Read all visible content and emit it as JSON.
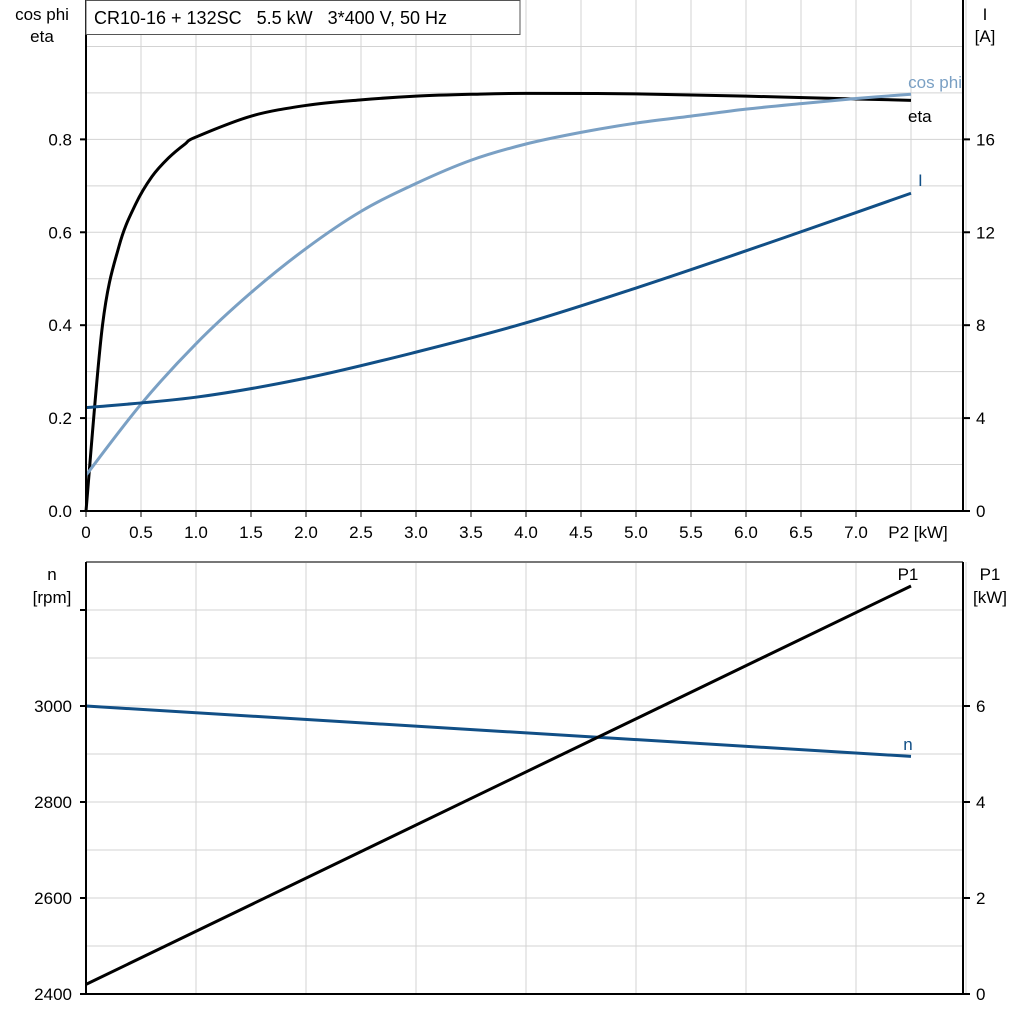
{
  "title": "CR10-16 + 132SC   5.5 kW   3*400 V, 50 Hz",
  "chart_data": [
    {
      "type": "line",
      "x_label": "P2 [kW]",
      "x_ticks": [
        "0",
        "0.5",
        "1.0",
        "1.5",
        "2.0",
        "2.5",
        "3.0",
        "3.5",
        "4.0",
        "4.5",
        "5.0",
        "5.5",
        "6.0",
        "6.5",
        "7.0"
      ],
      "xlim": [
        0,
        8
      ],
      "y_left_label": [
        "cos phi",
        "eta"
      ],
      "y_left_ticks": [
        "0.0",
        "0.2",
        "0.4",
        "0.6",
        "0.8"
      ],
      "ylim_left": [
        0,
        1.1
      ],
      "y_right_label": [
        "I",
        "[A]"
      ],
      "y_right_ticks": [
        "0",
        "4",
        "8",
        "12",
        "16"
      ],
      "ylim_right": [
        0,
        22
      ],
      "grid": true,
      "series": [
        {
          "name": "eta",
          "axis": "left",
          "color": "#000000",
          "x": [
            0,
            0.15,
            0.3,
            0.45,
            0.6,
            0.75,
            0.9,
            1.0,
            1.5,
            2.0,
            2.5,
            3.0,
            3.5,
            4.0,
            5.0,
            6.0,
            7.0,
            7.5
          ],
          "y": [
            0,
            0.4,
            0.57,
            0.66,
            0.72,
            0.76,
            0.79,
            0.805,
            0.85,
            0.873,
            0.885,
            0.893,
            0.897,
            0.899,
            0.898,
            0.893,
            0.887,
            0.884
          ]
        },
        {
          "name": "cos phi",
          "axis": "left",
          "color": "#7aa0c4",
          "x": [
            0,
            0.5,
            1.0,
            1.5,
            2.0,
            2.5,
            3.0,
            3.5,
            4.0,
            4.5,
            5.0,
            5.5,
            6.0,
            6.5,
            7.0,
            7.5
          ],
          "y": [
            0.077,
            0.23,
            0.36,
            0.47,
            0.565,
            0.645,
            0.705,
            0.755,
            0.79,
            0.815,
            0.835,
            0.85,
            0.865,
            0.877,
            0.888,
            0.897
          ]
        },
        {
          "name": "I",
          "axis": "right",
          "color": "#114f86",
          "x": [
            0,
            1.0,
            2.0,
            3.0,
            4.0,
            5.0,
            6.0,
            7.0,
            7.5
          ],
          "y": [
            4.45,
            4.9,
            5.72,
            6.84,
            8.1,
            9.6,
            11.2,
            12.85,
            13.68
          ]
        }
      ]
    },
    {
      "type": "line",
      "xlim": [
        0,
        8
      ],
      "y_left_label": [
        "n",
        "[rpm]"
      ],
      "y_left_ticks": [
        "2400",
        "2600",
        "2800",
        "3000"
      ],
      "ylim_left": [
        2400,
        3300
      ],
      "y_right_label": [
        "P1",
        "[kW]"
      ],
      "y_right_ticks": [
        "0",
        "2",
        "4",
        "6"
      ],
      "ylim_right": [
        0,
        9
      ],
      "grid": true,
      "series": [
        {
          "name": "n",
          "axis": "left",
          "color": "#114f86",
          "x": [
            0,
            7.5
          ],
          "y": [
            3000,
            2895
          ]
        },
        {
          "name": "P1",
          "axis": "right",
          "color": "#000000",
          "x": [
            0,
            7.5
          ],
          "y": [
            0.2,
            8.5
          ]
        }
      ]
    }
  ]
}
